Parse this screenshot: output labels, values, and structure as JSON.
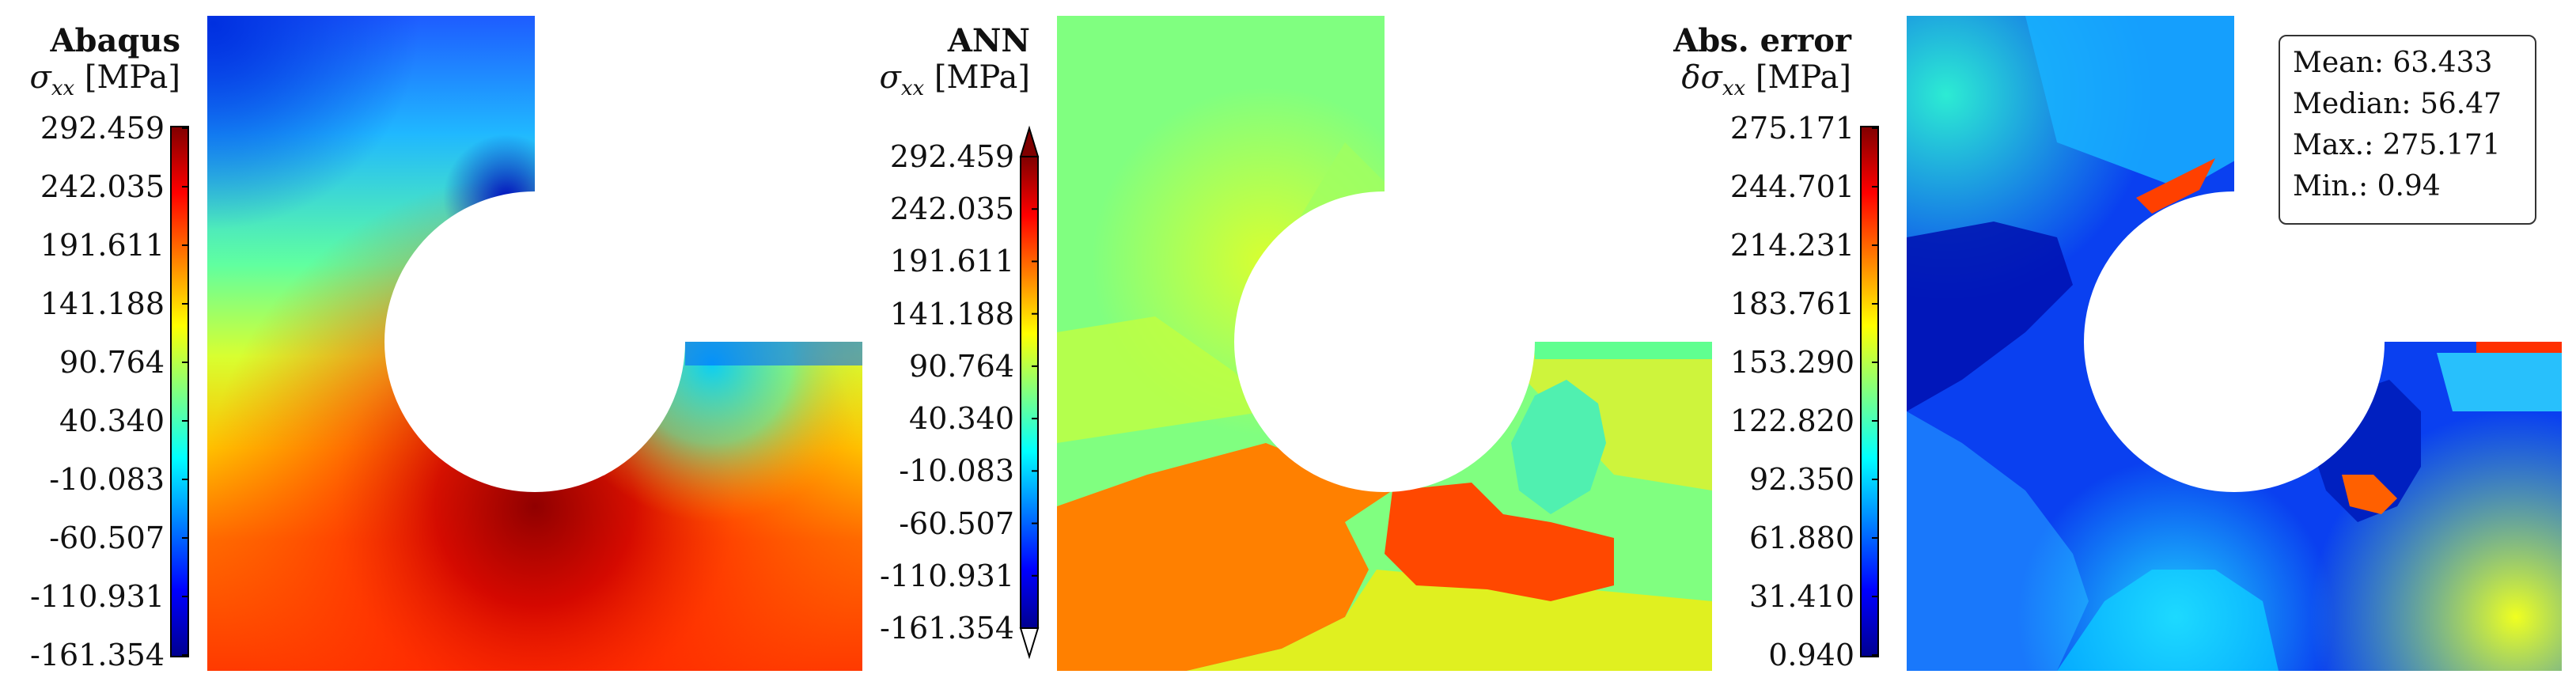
{
  "chart_data": [
    {
      "type": "heatmap",
      "title": "Abaqus",
      "quantity": "σxx [MPa]",
      "unit": "[MPa]",
      "colormap": "jet",
      "colorbar_ticks": [
        "292.459",
        "242.035",
        "191.611",
        "141.188",
        "90.764",
        "40.340",
        "-10.083",
        "-60.507",
        "-110.931",
        "-161.354"
      ],
      "range": [
        -161.354,
        292.459
      ]
    },
    {
      "type": "heatmap",
      "title": "ANN",
      "quantity": "σxx [MPa]",
      "unit": "[MPa]",
      "colormap": "jet",
      "colorbar_extend": "both",
      "colorbar_ticks": [
        "292.459",
        "242.035",
        "191.611",
        "141.188",
        "90.764",
        "40.340",
        "-10.083",
        "-60.507",
        "-110.931",
        "-161.354"
      ],
      "range": [
        -161.354,
        292.459
      ]
    },
    {
      "type": "heatmap",
      "title": "Abs. error",
      "quantity": "δσxx [MPa]",
      "unit": "[MPa]",
      "colormap": "jet",
      "colorbar_ticks": [
        "275.171",
        "244.701",
        "214.231",
        "183.761",
        "153.290",
        "122.820",
        "92.350",
        "61.880",
        "31.410",
        "0.940"
      ],
      "range": [
        0.94,
        275.171
      ],
      "stats": [
        "Mean: 63.433",
        "Median: 56.47",
        "Max.: 275.171",
        "Min.: 0.94"
      ]
    }
  ]
}
